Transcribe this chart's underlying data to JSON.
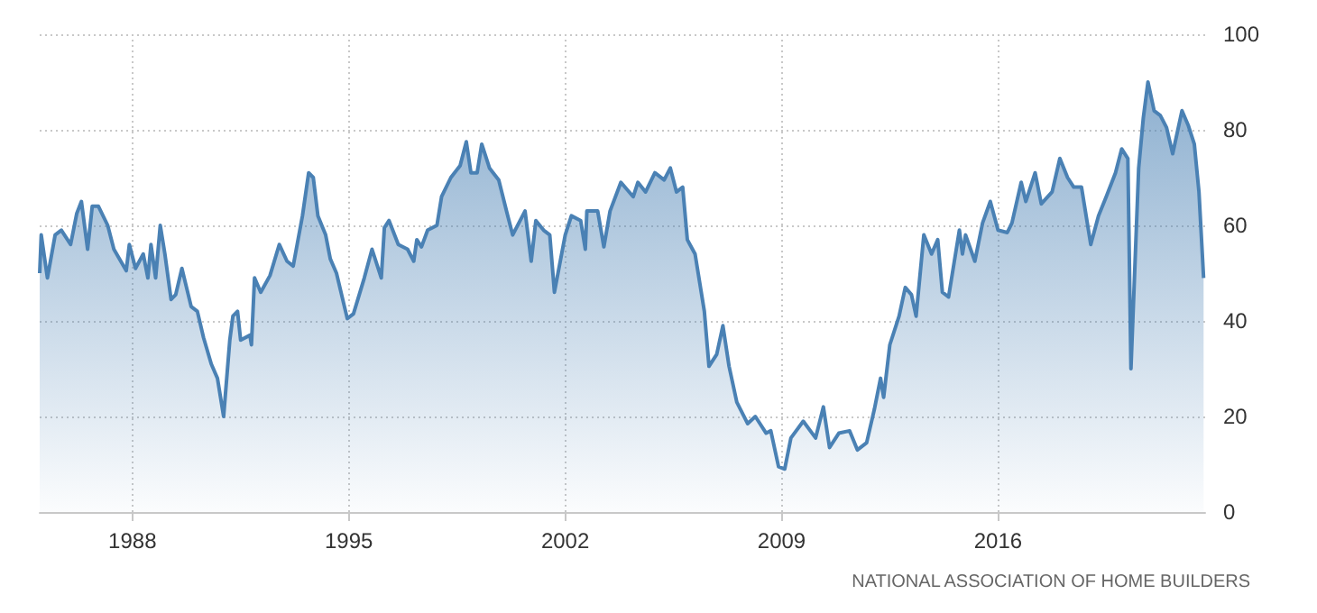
{
  "chart_data": {
    "type": "area",
    "x": [
      1985.0,
      1985.05,
      1985.25,
      1985.5,
      1985.7,
      1986.0,
      1986.2,
      1986.35,
      1986.55,
      1986.7,
      1986.9,
      1987.2,
      1987.4,
      1987.8,
      1987.9,
      1988.1,
      1988.35,
      1988.5,
      1988.6,
      1988.75,
      1988.9,
      1989.05,
      1989.25,
      1989.4,
      1989.6,
      1989.9,
      1990.1,
      1990.3,
      1990.55,
      1990.75,
      1990.95,
      1991.15,
      1991.25,
      1991.4,
      1991.5,
      1991.8,
      1991.85,
      1991.95,
      1992.15,
      1992.45,
      1992.75,
      1993.0,
      1993.2,
      1993.5,
      1993.7,
      1993.85,
      1994.0,
      1994.25,
      1994.4,
      1994.6,
      1994.95,
      1995.15,
      1995.5,
      1995.75,
      1996.05,
      1996.15,
      1996.3,
      1996.6,
      1996.9,
      1997.1,
      1997.2,
      1997.35,
      1997.55,
      1997.85,
      1998.0,
      1998.3,
      1998.6,
      1998.8,
      1998.95,
      1999.15,
      1999.3,
      1999.55,
      1999.85,
      2000.1,
      2000.3,
      2000.7,
      2000.9,
      2001.05,
      2001.3,
      2001.5,
      2001.65,
      2002.0,
      2002.2,
      2002.5,
      2002.65,
      2002.7,
      2003.05,
      2003.25,
      2003.45,
      2003.8,
      2004.0,
      2004.2,
      2004.35,
      2004.6,
      2004.9,
      2005.2,
      2005.4,
      2005.6,
      2005.8,
      2005.95,
      2006.2,
      2006.5,
      2006.65,
      2006.9,
      2007.1,
      2007.3,
      2007.55,
      2007.9,
      2008.15,
      2008.5,
      2008.65,
      2008.9,
      2009.1,
      2009.3,
      2009.7,
      2010.1,
      2010.35,
      2010.55,
      2010.85,
      2011.2,
      2011.45,
      2011.75,
      2012.0,
      2012.2,
      2012.3,
      2012.5,
      2012.8,
      2013.0,
      2013.2,
      2013.35,
      2013.6,
      2013.85,
      2014.05,
      2014.2,
      2014.4,
      2014.75,
      2014.85,
      2014.95,
      2015.25,
      2015.5,
      2015.75,
      2016.0,
      2016.3,
      2016.45,
      2016.75,
      2016.9,
      2017.2,
      2017.4,
      2017.75,
      2018.0,
      2018.25,
      2018.45,
      2018.7,
      2019.0,
      2019.25,
      2019.5,
      2019.8,
      2020.0,
      2020.2,
      2020.3,
      2020.55,
      2020.7,
      2020.85,
      2021.05,
      2021.25,
      2021.45,
      2021.65,
      2021.95,
      2022.15,
      2022.35,
      2022.5,
      2022.65
    ],
    "series": [
      {
        "color": "#4a81b4",
        "values": [
          50,
          58,
          49,
          58,
          59,
          56,
          62.5,
          65,
          55,
          64,
          64,
          60,
          55,
          50.5,
          56,
          51,
          54,
          49,
          56,
          49,
          60,
          54,
          44.5,
          45.5,
          51,
          43,
          42,
          36.5,
          31,
          28,
          20,
          36,
          41,
          42,
          36,
          37,
          35,
          49,
          46,
          49.5,
          56,
          52.5,
          51.5,
          62,
          71,
          70,
          62,
          58,
          53,
          50,
          40.5,
          41.5,
          49,
          55,
          49,
          59.5,
          61,
          56,
          55,
          52.5,
          57,
          55.5,
          59,
          60,
          66,
          70,
          72.5,
          77.5,
          71,
          71,
          77,
          72,
          69.5,
          63,
          58,
          63,
          52.5,
          61,
          59,
          58,
          46,
          58,
          62,
          61,
          55,
          63,
          63,
          55.5,
          63,
          69,
          67.5,
          66,
          69,
          67,
          71,
          69.5,
          72,
          67,
          68,
          57,
          54,
          42,
          30.5,
          33,
          39,
          30.5,
          23,
          18.5,
          20,
          16.5,
          17,
          9.5,
          9,
          15.5,
          19,
          15.5,
          22,
          13.5,
          16.5,
          17,
          13,
          14.5,
          21.5,
          28,
          24,
          35,
          41,
          47,
          45.5,
          41,
          58,
          54,
          57,
          46,
          45,
          59,
          54,
          58,
          52.5,
          60.5,
          65,
          59,
          58.5,
          60.5,
          69,
          65,
          71,
          64.5,
          67,
          74,
          70,
          68,
          68,
          56,
          62,
          66,
          71,
          76,
          74,
          30,
          72,
          82.5,
          90,
          84,
          83,
          80.5,
          75,
          84,
          81,
          77,
          67,
          49
        ]
      }
    ],
    "xlim": [
      1985,
      2022.7
    ],
    "xticks": [
      1988,
      1995,
      2002,
      2009,
      2016
    ],
    "ylim": [
      0,
      100
    ],
    "yticks": [
      0,
      20,
      40,
      60,
      80,
      100
    ],
    "grid": true,
    "marker": "none",
    "annotations": [
      "NATIONAL ASSOCIATION OF HOME BUILDERS"
    ]
  }
}
